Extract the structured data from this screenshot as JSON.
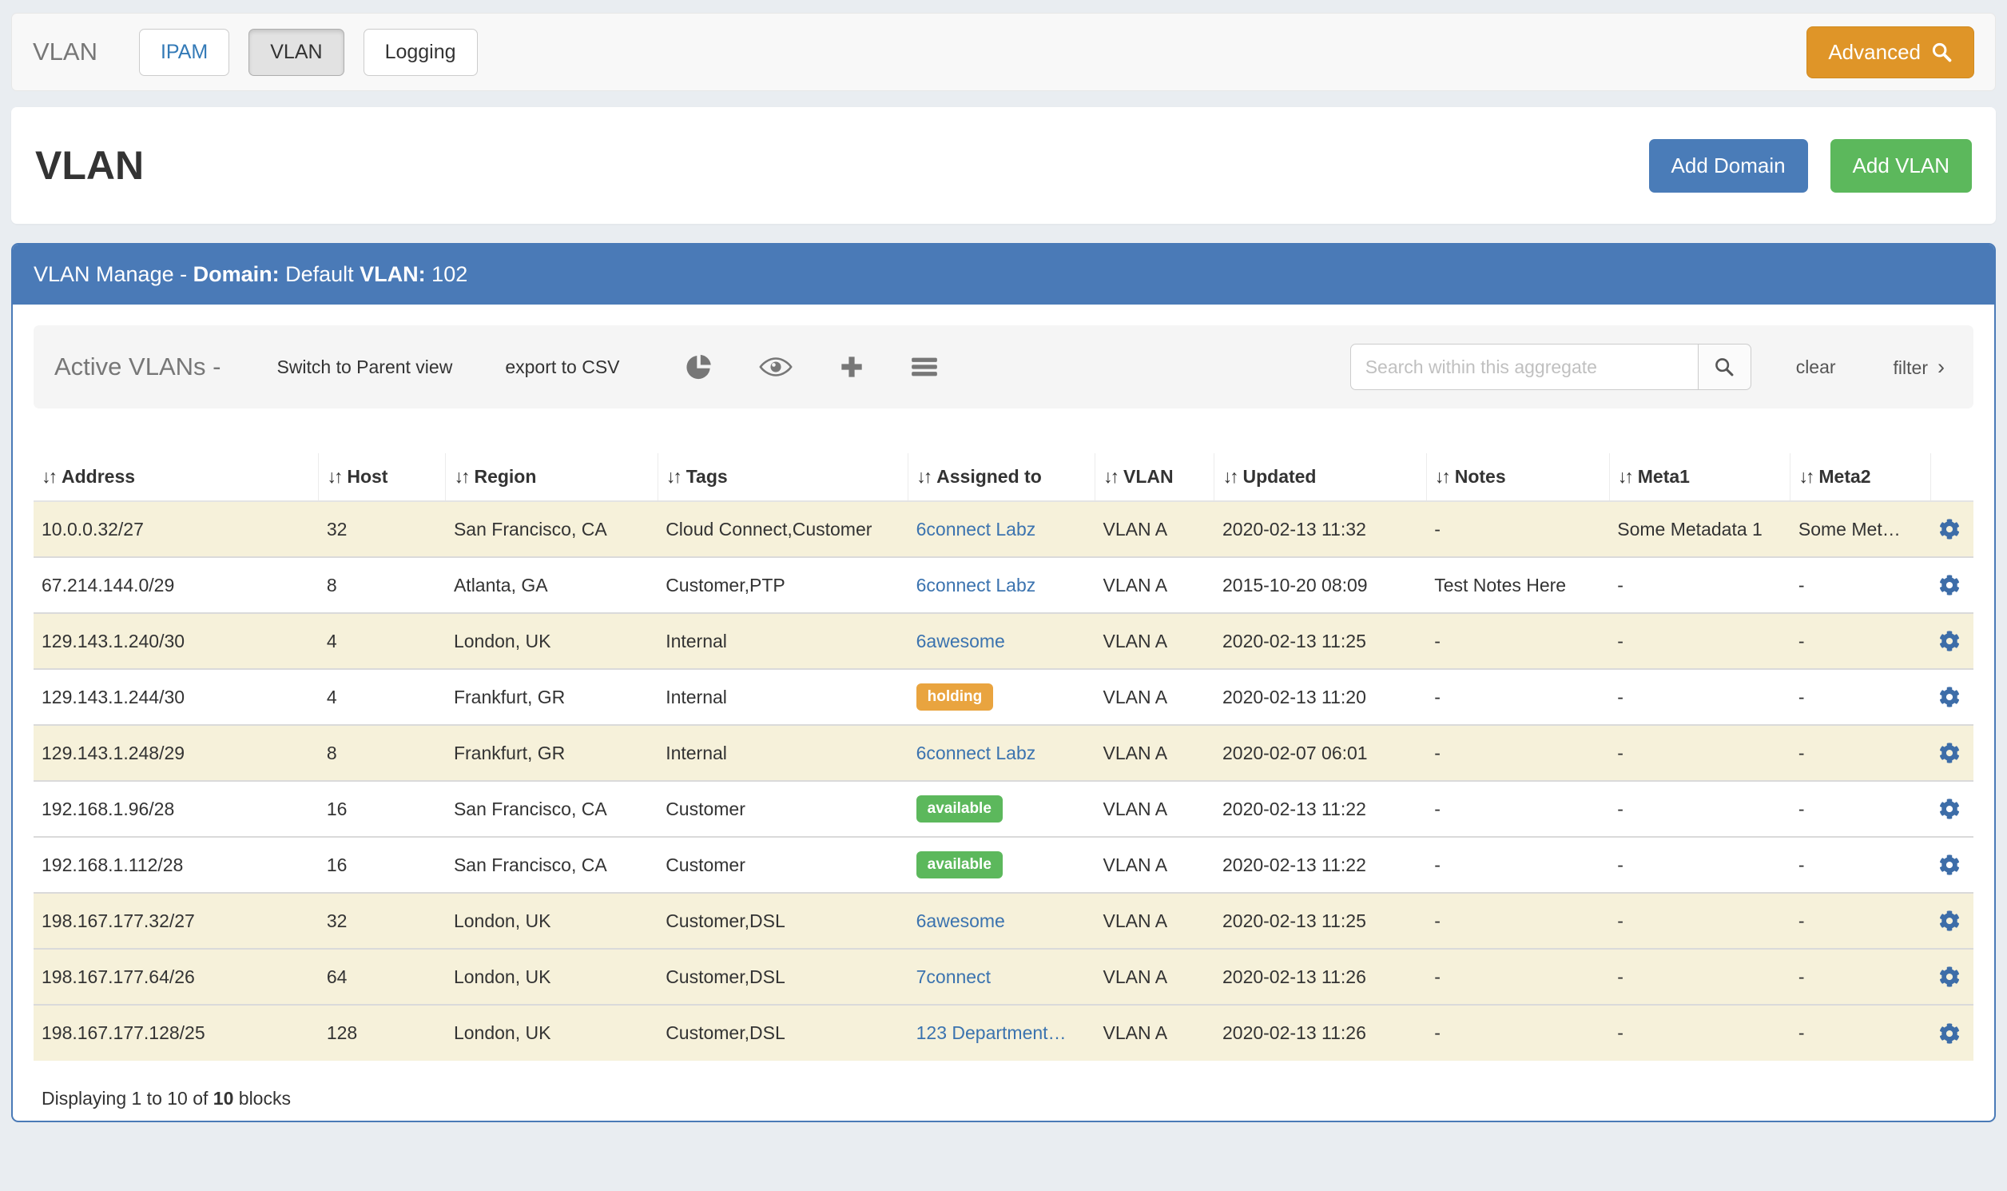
{
  "navbar": {
    "brand": "VLAN",
    "tabs": [
      {
        "label": "IPAM"
      },
      {
        "label": "VLAN"
      },
      {
        "label": "Logging"
      }
    ],
    "advanced_label": "Advanced"
  },
  "page_header": {
    "title": "VLAN",
    "add_domain_label": "Add Domain",
    "add_vlan_label": "Add VLAN"
  },
  "panel": {
    "heading_parts": [
      {
        "text": "VLAN Manage - ",
        "bold": false
      },
      {
        "text": "Domain:",
        "bold": true
      },
      {
        "text": " Default ",
        "bold": false
      },
      {
        "text": "VLAN:",
        "bold": true
      },
      {
        "text": " 102",
        "bold": false
      }
    ],
    "toolbar": {
      "title": "Active VLANs -",
      "switch_view_label": "Switch to Parent view",
      "export_csv_label": "export to CSV",
      "icon_names": [
        "pie-chart-icon",
        "eye-icon",
        "plus-icon",
        "menu-icon"
      ],
      "search_placeholder": "Search within this aggregate",
      "search_value": "",
      "clear_label": "clear",
      "filter_label": "filter",
      "filter_chevron": "›"
    },
    "table": {
      "sort_glyph": "↓↑",
      "columns": [
        "Address",
        "Host",
        "Region",
        "Tags",
        "Assigned to",
        "VLAN",
        "Updated",
        "Notes",
        "Meta1",
        "Meta2"
      ],
      "rows": [
        {
          "address": "10.0.0.32/27",
          "host": "32",
          "region": "San Francisco, CA",
          "tags": "Cloud Connect,Customer",
          "assigned": {
            "type": "link",
            "text": "6connect Labz"
          },
          "vlan": "VLAN A",
          "updated": "2020-02-13 11:32",
          "notes": "-",
          "meta1": "Some Metadata 1",
          "meta2": "Some Met…",
          "beige": true
        },
        {
          "address": "67.214.144.0/29",
          "host": "8",
          "region": "Atlanta, GA",
          "tags": "Customer,PTP",
          "assigned": {
            "type": "link",
            "text": "6connect Labz"
          },
          "vlan": "VLAN A",
          "updated": "2015-10-20 08:09",
          "notes": "Test Notes Here",
          "meta1": "-",
          "meta2": "-",
          "beige": false
        },
        {
          "address": "129.143.1.240/30",
          "host": "4",
          "region": "London, UK",
          "tags": "Internal",
          "assigned": {
            "type": "link",
            "text": "6awesome"
          },
          "vlan": "VLAN A",
          "updated": "2020-02-13 11:25",
          "notes": "-",
          "meta1": "-",
          "meta2": "-",
          "beige": true
        },
        {
          "address": "129.143.1.244/30",
          "host": "4",
          "region": "Frankfurt, GR",
          "tags": "Internal",
          "assigned": {
            "type": "badge",
            "text": "holding"
          },
          "vlan": "VLAN A",
          "updated": "2020-02-13 11:20",
          "notes": "-",
          "meta1": "-",
          "meta2": "-",
          "beige": false
        },
        {
          "address": "129.143.1.248/29",
          "host": "8",
          "region": "Frankfurt, GR",
          "tags": "Internal",
          "assigned": {
            "type": "link",
            "text": "6connect Labz"
          },
          "vlan": "VLAN A",
          "updated": "2020-02-07 06:01",
          "notes": "-",
          "meta1": "-",
          "meta2": "-",
          "beige": true
        },
        {
          "address": "192.168.1.96/28",
          "host": "16",
          "region": "San Francisco, CA",
          "tags": "Customer",
          "assigned": {
            "type": "badge",
            "text": "available"
          },
          "vlan": "VLAN A",
          "updated": "2020-02-13 11:22",
          "notes": "-",
          "meta1": "-",
          "meta2": "-",
          "beige": false
        },
        {
          "address": "192.168.1.112/28",
          "host": "16",
          "region": "San Francisco, CA",
          "tags": "Customer",
          "assigned": {
            "type": "badge",
            "text": "available"
          },
          "vlan": "VLAN A",
          "updated": "2020-02-13 11:22",
          "notes": "-",
          "meta1": "-",
          "meta2": "-",
          "beige": false
        },
        {
          "address": "198.167.177.32/27",
          "host": "32",
          "region": "London, UK",
          "tags": "Customer,DSL",
          "assigned": {
            "type": "link",
            "text": "6awesome"
          },
          "vlan": "VLAN A",
          "updated": "2020-02-13 11:25",
          "notes": "-",
          "meta1": "-",
          "meta2": "-",
          "beige": true
        },
        {
          "address": "198.167.177.64/26",
          "host": "64",
          "region": "London, UK",
          "tags": "Customer,DSL",
          "assigned": {
            "type": "link",
            "text": "7connect"
          },
          "vlan": "VLAN A",
          "updated": "2020-02-13 11:26",
          "notes": "-",
          "meta1": "-",
          "meta2": "-",
          "beige": true
        },
        {
          "address": "198.167.177.128/25",
          "host": "128",
          "region": "London, UK",
          "tags": "Customer,DSL",
          "assigned": {
            "type": "link",
            "text": "123 Department…"
          },
          "vlan": "VLAN A",
          "updated": "2020-02-13 11:26",
          "notes": "-",
          "meta1": "-",
          "meta2": "-",
          "beige": true
        }
      ]
    },
    "footer": {
      "prefix": "Displaying 1 to 10 of ",
      "count": "10",
      "suffix": " blocks"
    }
  },
  "colors": {
    "panel_blue": "#4a7ab7",
    "button_blue": "#4a7cb8",
    "button_green": "#5cb85c",
    "advanced_orange": "#df9528",
    "badge_holding": "#e9a43f",
    "badge_available": "#5cb85c",
    "row_beige": "#f6f1da",
    "link_blue": "#3b73af",
    "gear_blue": "#3d6da8",
    "icon_gray": "#777777"
  }
}
